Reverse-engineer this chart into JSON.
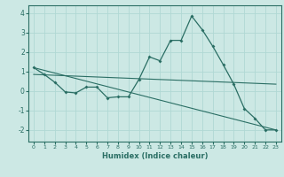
{
  "title": "",
  "xlabel": "Humidex (Indice chaleur)",
  "background_color": "#cce8e4",
  "grid_color": "#b0d8d4",
  "line_color": "#2a6e64",
  "xlim": [
    -0.5,
    23.5
  ],
  "ylim": [
    -2.6,
    4.4
  ],
  "yticks": [
    -2,
    -1,
    0,
    1,
    2,
    3,
    4
  ],
  "xticks": [
    0,
    1,
    2,
    3,
    4,
    5,
    6,
    7,
    8,
    9,
    10,
    11,
    12,
    13,
    14,
    15,
    16,
    17,
    18,
    19,
    20,
    21,
    22,
    23
  ],
  "series1_x": [
    0,
    1,
    2,
    3,
    4,
    5,
    6,
    7,
    8,
    9,
    10,
    11,
    12,
    13,
    14,
    15,
    16,
    17,
    18,
    19,
    20,
    21,
    22,
    23
  ],
  "series1_y": [
    1.2,
    0.85,
    0.45,
    -0.05,
    -0.1,
    0.2,
    0.2,
    -0.35,
    -0.3,
    -0.3,
    0.6,
    1.75,
    1.55,
    2.6,
    2.6,
    3.85,
    3.15,
    2.3,
    1.35,
    0.35,
    -0.9,
    -1.4,
    -2.0,
    -2.0
  ],
  "series2_x": [
    0,
    23
  ],
  "series2_y": [
    0.85,
    0.35
  ],
  "series3_x": [
    0,
    23
  ],
  "series3_y": [
    1.2,
    -2.0
  ]
}
